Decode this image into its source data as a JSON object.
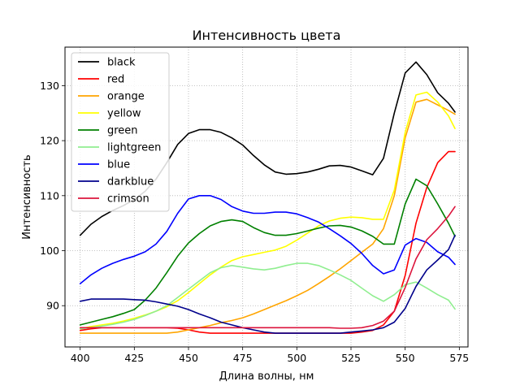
{
  "chart_data": {
    "type": "line",
    "title": "Интенсивность цвета",
    "xlabel": "Длина волны, нм",
    "ylabel": "Интенсивность",
    "xlim": [
      393,
      579
    ],
    "ylim": [
      82.5,
      137
    ],
    "xticks": [
      400,
      425,
      450,
      475,
      500,
      525,
      550,
      575
    ],
    "yticks": [
      90,
      100,
      110,
      120,
      130
    ],
    "grid": true,
    "legend_position": "top-left",
    "x": [
      400,
      405,
      410,
      415,
      420,
      425,
      430,
      435,
      440,
      445,
      450,
      455,
      460,
      465,
      470,
      475,
      480,
      485,
      490,
      495,
      500,
      505,
      510,
      515,
      520,
      525,
      530,
      535,
      540,
      545,
      550,
      555,
      560,
      565,
      570,
      573
    ],
    "series": [
      {
        "name": "black",
        "color": "#000000",
        "values": [
          102.8,
          104.8,
          106.2,
          107.3,
          108.2,
          109.3,
          110.8,
          113.0,
          116.0,
          119.3,
          121.3,
          122.0,
          122.0,
          121.5,
          120.5,
          119.2,
          117.3,
          115.6,
          114.3,
          113.9,
          114.0,
          114.3,
          114.8,
          115.4,
          115.5,
          115.2,
          114.5,
          113.8,
          116.8,
          125.0,
          132.3,
          134.3,
          132.0,
          128.7,
          126.8,
          125.2
        ]
      },
      {
        "name": "red",
        "color": "#ff0000",
        "values": [
          85.5,
          85.8,
          86.0,
          86.0,
          86.0,
          86.0,
          86.0,
          86.0,
          86.0,
          85.9,
          85.6,
          85.2,
          85.0,
          85.0,
          85.0,
          85.0,
          85.0,
          85.0,
          85.0,
          85.0,
          85.0,
          85.0,
          85.0,
          85.0,
          85.0,
          85.0,
          85.2,
          85.5,
          86.5,
          89.0,
          95.5,
          105.0,
          111.5,
          116.0,
          118.0,
          118.0
        ]
      },
      {
        "name": "orange",
        "color": "#ffa500",
        "values": [
          85.0,
          85.0,
          85.0,
          85.0,
          85.0,
          85.0,
          85.0,
          85.0,
          85.0,
          85.2,
          85.6,
          86.0,
          86.4,
          86.9,
          87.3,
          87.8,
          88.5,
          89.3,
          90.1,
          90.9,
          91.8,
          92.8,
          94.0,
          95.3,
          96.7,
          98.2,
          99.7,
          101.2,
          104.0,
          110.0,
          120.5,
          127.0,
          127.5,
          126.5,
          125.5,
          124.8
        ]
      },
      {
        "name": "yellow",
        "color": "#ffff00",
        "values": [
          85.8,
          86.2,
          86.5,
          86.8,
          87.2,
          87.7,
          88.3,
          89.0,
          89.8,
          90.9,
          92.4,
          94.0,
          95.6,
          97.0,
          98.2,
          98.9,
          99.3,
          99.7,
          100.1,
          100.8,
          101.9,
          103.2,
          104.5,
          105.4,
          105.9,
          106.1,
          106.0,
          105.7,
          105.7,
          111.0,
          121.5,
          128.3,
          128.8,
          127.0,
          124.5,
          122.2
        ]
      },
      {
        "name": "green",
        "color": "#008000",
        "values": [
          86.5,
          87.0,
          87.5,
          88.0,
          88.6,
          89.3,
          91.0,
          93.2,
          96.0,
          99.0,
          101.4,
          103.1,
          104.5,
          105.3,
          105.6,
          105.3,
          104.2,
          103.3,
          102.8,
          102.8,
          103.1,
          103.6,
          104.1,
          104.5,
          104.6,
          104.3,
          103.6,
          102.6,
          101.2,
          101.2,
          108.5,
          113.0,
          111.8,
          108.5,
          105.0,
          102.6
        ]
      },
      {
        "name": "lightgreen",
        "color": "#90ee90",
        "values": [
          85.8,
          86.0,
          86.3,
          86.6,
          87.0,
          87.5,
          88.2,
          89.0,
          90.0,
          91.5,
          93.0,
          94.5,
          96.0,
          96.9,
          97.3,
          97.0,
          96.7,
          96.5,
          96.8,
          97.3,
          97.7,
          97.7,
          97.3,
          96.5,
          95.6,
          94.6,
          93.2,
          91.8,
          90.8,
          92.0,
          93.8,
          94.3,
          93.2,
          92.0,
          91.0,
          89.4
        ]
      },
      {
        "name": "blue",
        "color": "#0000ff",
        "values": [
          94.0,
          95.6,
          96.8,
          97.7,
          98.4,
          99.0,
          99.8,
          101.2,
          103.5,
          106.8,
          109.4,
          110.0,
          110.0,
          109.3,
          108.0,
          107.2,
          106.8,
          106.8,
          107.0,
          107.0,
          106.7,
          106.0,
          105.2,
          104.0,
          102.7,
          101.3,
          99.5,
          97.3,
          95.8,
          96.5,
          101.0,
          102.2,
          101.5,
          99.8,
          98.8,
          97.5
        ]
      },
      {
        "name": "darkblue",
        "color": "#00008b",
        "values": [
          90.8,
          91.2,
          91.2,
          91.2,
          91.2,
          91.1,
          91.0,
          90.7,
          90.3,
          89.9,
          89.3,
          88.5,
          87.8,
          87.0,
          86.5,
          86.0,
          85.6,
          85.2,
          85.0,
          85.0,
          85.0,
          85.0,
          85.0,
          85.0,
          85.0,
          85.2,
          85.4,
          85.6,
          86.0,
          87.0,
          89.5,
          93.5,
          96.5,
          98.3,
          100.2,
          102.8
        ]
      },
      {
        "name": "crimson",
        "color": "#dc143c",
        "values": [
          86.0,
          86.0,
          86.0,
          86.0,
          86.0,
          86.0,
          86.0,
          86.0,
          86.0,
          86.0,
          86.0,
          86.0,
          86.0,
          86.0,
          86.0,
          86.0,
          86.0,
          86.0,
          86.0,
          86.0,
          86.0,
          86.0,
          86.0,
          86.0,
          85.9,
          85.9,
          86.0,
          86.4,
          87.2,
          89.0,
          93.3,
          98.5,
          102.0,
          104.0,
          106.3,
          108.0
        ]
      }
    ]
  }
}
